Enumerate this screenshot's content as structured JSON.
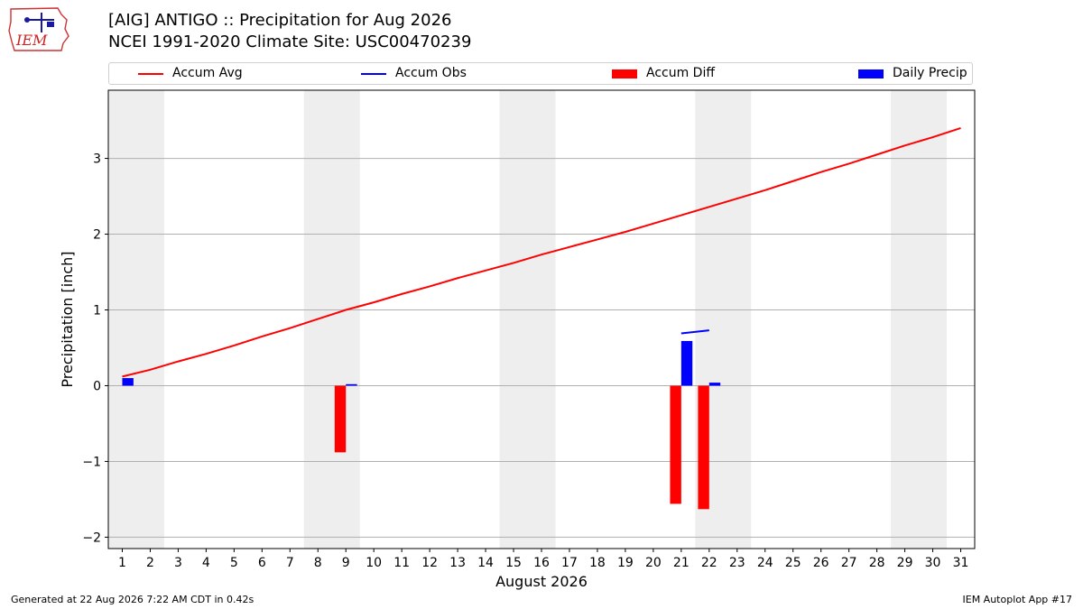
{
  "header": {
    "title_line1": "[AIG] ANTIGO :: Precipitation for Aug 2026",
    "title_line2": "NCEI 1991-2020 Climate Site: USC00470239",
    "logo_text": "IEM"
  },
  "legend": [
    {
      "label": "Accum Avg",
      "color": "#ff0000",
      "kind": "line"
    },
    {
      "label": "Accum Obs",
      "color": "#0000ff",
      "kind": "line"
    },
    {
      "label": "Accum Diff",
      "color": "#ff0000",
      "kind": "patch"
    },
    {
      "label": "Daily Precip",
      "color": "#0000ff",
      "kind": "patch"
    }
  ],
  "footer": {
    "generated": "Generated at 22 Aug 2026 7:22 AM CDT in 0.42s",
    "app": "IEM Autoplot App #17"
  },
  "chart_data": {
    "type": "bar",
    "xlabel": "August 2026",
    "ylabel": "Precipitation [inch]",
    "xlim": [
      0.5,
      31.5
    ],
    "ylim": [
      -2.15,
      3.9
    ],
    "yticks": [
      -2,
      -1,
      0,
      1,
      2,
      3
    ],
    "ytick_labels": [
      "−2",
      "−1",
      "0",
      "1",
      "2",
      "3"
    ],
    "xticks": [
      1,
      2,
      3,
      4,
      5,
      6,
      7,
      8,
      9,
      10,
      11,
      12,
      13,
      14,
      15,
      16,
      17,
      18,
      19,
      20,
      21,
      22,
      23,
      24,
      25,
      26,
      27,
      28,
      29,
      30,
      31
    ],
    "grid": "horizontal",
    "weekend_shading": [
      [
        1,
        2
      ],
      [
        8,
        9
      ],
      [
        15,
        16
      ],
      [
        22,
        23
      ],
      [
        29,
        30
      ]
    ],
    "colors": {
      "avg": "#ff0000",
      "obs": "#0000ff",
      "diff": "#ff0000",
      "daily": "#0000ff",
      "shade": "#eeeeee"
    },
    "series": [
      {
        "name": "Accum Avg",
        "kind": "line",
        "x": [
          1,
          2,
          3,
          4,
          5,
          6,
          7,
          8,
          9,
          10,
          11,
          12,
          13,
          14,
          15,
          16,
          17,
          18,
          19,
          20,
          21,
          22,
          23,
          24,
          25,
          26,
          27,
          28,
          29,
          30,
          31
        ],
        "values": [
          0.12,
          0.21,
          0.32,
          0.42,
          0.53,
          0.65,
          0.76,
          0.88,
          1.0,
          1.1,
          1.21,
          1.31,
          1.42,
          1.52,
          1.62,
          1.73,
          1.83,
          1.93,
          2.03,
          2.14,
          2.25,
          2.36,
          2.47,
          2.58,
          2.7,
          2.82,
          2.93,
          3.05,
          3.17,
          3.28,
          3.4
        ]
      },
      {
        "name": "Accum Obs",
        "kind": "line",
        "x": [
          21,
          22
        ],
        "values": [
          0.69,
          0.73
        ]
      },
      {
        "name": "Accum Diff",
        "kind": "bar",
        "x": [
          9,
          21,
          22
        ],
        "values": [
          -0.88,
          -1.56,
          -1.63
        ]
      },
      {
        "name": "Daily Precip",
        "kind": "bar",
        "x": [
          1,
          9,
          21,
          22
        ],
        "values": [
          0.1,
          0.02,
          0.59,
          0.04
        ]
      }
    ]
  }
}
